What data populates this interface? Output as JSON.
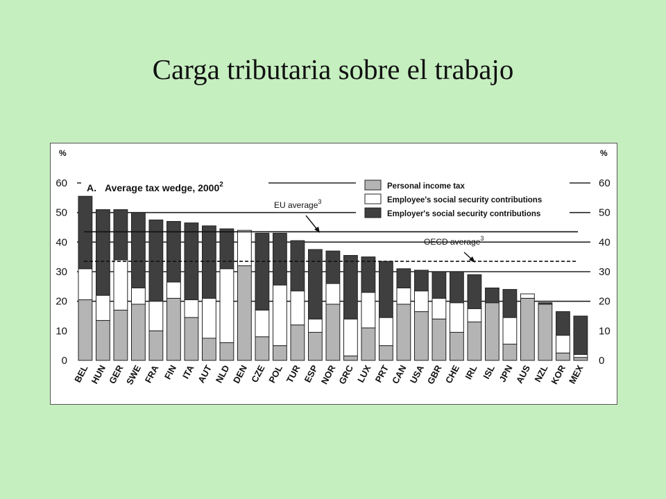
{
  "slide": {
    "title": "Carga tributaria sobre el trabajo"
  },
  "colors": {
    "background": "#c6efc0",
    "personal_income_tax": "#b4b4b4",
    "employee_ssc": "#ffffff",
    "employer_ssc": "#3f3f3f"
  },
  "chart_data": {
    "type": "bar",
    "stacked": true,
    "panel_label": "A.",
    "title": "Average tax wedge, 2000",
    "title_superscript": "2",
    "unit_left": "%",
    "unit_right": "%",
    "ylim": [
      0,
      60
    ],
    "yticks": [
      0,
      10,
      20,
      30,
      40,
      50,
      60
    ],
    "gridlines": [
      60,
      50,
      40,
      30,
      20
    ],
    "legend_position": "top-right",
    "categories": [
      "BEL",
      "HUN",
      "GER",
      "SWE",
      "FRA",
      "FIN",
      "ITA",
      "AUT",
      "NLD",
      "DEN",
      "CZE",
      "POL",
      "TUR",
      "ESP",
      "NOR",
      "GRC",
      "LUX",
      "PRT",
      "CAN",
      "USA",
      "GBR",
      "CHE",
      "IRL",
      "ISL",
      "JPN",
      "AUS",
      "NZL",
      "KOR",
      "MEX"
    ],
    "series": [
      {
        "name": "Personal income tax",
        "values": [
          20.5,
          13.5,
          17,
          19,
          10,
          21,
          14.5,
          7.5,
          6,
          32,
          8,
          5,
          12,
          9.5,
          19,
          1.5,
          11,
          5,
          19,
          16.5,
          14,
          9.5,
          13,
          19.5,
          5.5,
          21,
          19,
          2.5,
          1
        ]
      },
      {
        "name": "Employee's social security contributions",
        "values": [
          10.5,
          8.5,
          17,
          5.5,
          10,
          5.5,
          6,
          13.5,
          25,
          12,
          9,
          20.5,
          11.5,
          4.5,
          7,
          12.5,
          12,
          9.5,
          5.5,
          7,
          7,
          10,
          4.5,
          0,
          9,
          1.5,
          0,
          6,
          1
        ]
      },
      {
        "name": "Employer's social security contributions",
        "values": [
          24.5,
          29,
          17,
          25.5,
          27.5,
          20.5,
          26,
          24.5,
          13.5,
          0,
          26,
          17.5,
          17,
          23.5,
          11,
          21.5,
          12,
          19,
          6.5,
          7,
          9,
          10.5,
          11.5,
          5,
          9.5,
          0,
          0.5,
          8,
          13
        ]
      }
    ],
    "reference_lines": [
      {
        "label": "EU average",
        "superscript": "3",
        "value": 43.5
      },
      {
        "label": "OECD average",
        "superscript": "3",
        "value": 33.5
      }
    ]
  }
}
